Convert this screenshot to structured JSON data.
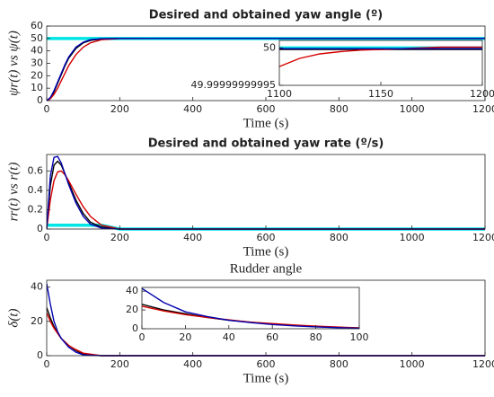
{
  "chart_data": [
    {
      "type": "line",
      "title": "Desired and obtained yaw angle (º)",
      "xlabel": "Time (s)",
      "ylabel": "ψr(t) vs ψ(t)",
      "xlim": [
        0,
        1200
      ],
      "ylim": [
        0,
        60
      ],
      "xticks": [
        0,
        200,
        400,
        600,
        800,
        1000,
        1200
      ],
      "yticks": [
        0,
        10,
        20,
        30,
        40,
        50,
        60
      ],
      "x": [
        0,
        10,
        20,
        30,
        40,
        50,
        60,
        80,
        100,
        120,
        150,
        200,
        300,
        600,
        900,
        1200
      ],
      "series": [
        {
          "color": "#00e5e5",
          "values": [
            50,
            50,
            50,
            50,
            50,
            50,
            50,
            50,
            50,
            50,
            50,
            50,
            50,
            50,
            50,
            50
          ]
        },
        {
          "color": "#000000",
          "values": [
            0,
            2,
            7,
            14,
            21,
            28,
            34,
            42,
            46.5,
            48.5,
            49.7,
            50,
            50,
            50,
            50,
            50
          ]
        },
        {
          "color": "#d40000",
          "values": [
            0,
            1.5,
            5,
            10,
            16,
            22,
            28,
            37,
            43,
            46.5,
            49,
            49.9,
            50,
            50,
            50,
            50
          ]
        },
        {
          "color": "#0000b0",
          "values": [
            0,
            2.5,
            8,
            15,
            22,
            29,
            35,
            43,
            47,
            49,
            49.8,
            50,
            50,
            50,
            50,
            50
          ]
        }
      ]
    },
    {
      "type": "line",
      "xlim": [
        1100,
        1200
      ],
      "ylim": [
        49.99999999995,
        50.00000000001
      ],
      "xticks": [
        1100,
        1150,
        1200
      ],
      "yticks": [
        49.99999999995,
        50
      ],
      "x": [
        1100,
        1110,
        1120,
        1130,
        1140,
        1150,
        1160,
        1170,
        1180,
        1190,
        1200
      ],
      "series": [
        {
          "color": "#00e5e5",
          "values": [
            50,
            50,
            50,
            50,
            50,
            50,
            50,
            50,
            50,
            50,
            50
          ]
        },
        {
          "color": "#000000",
          "values": [
            49.999999999998,
            49.999999999998,
            49.999999999998,
            49.999999999998,
            49.999999999998,
            49.999999999998,
            49.999999999998,
            49.999999999998,
            49.999999999998,
            49.999999999998,
            49.999999999998
          ]
        },
        {
          "color": "#d40000",
          "values": [
            49.999999999975,
            49.999999999986,
            49.999999999992,
            49.999999999995,
            49.999999999997,
            49.999999999998,
            49.999999999999,
            50,
            50.000000000001,
            50.000000000001,
            50.000000000001
          ]
        },
        {
          "color": "#0000b0",
          "values": [
            49.999999999999,
            49.999999999999,
            49.999999999999,
            49.999999999999,
            49.999999999999,
            49.999999999999,
            49.999999999999,
            49.999999999999,
            49.999999999999,
            49.999999999999,
            49.999999999999
          ]
        }
      ]
    },
    {
      "type": "line",
      "title": "Desired and obtained yaw rate (º/s)",
      "xlabel": "Time (s)",
      "ylabel": "rr(t) vs r(t)",
      "xlim": [
        0,
        1200
      ],
      "ylim": [
        0,
        0.77
      ],
      "xticks": [
        0,
        200,
        400,
        600,
        800,
        1000,
        1200
      ],
      "yticks": [
        0,
        0.2,
        0.4,
        0.6
      ],
      "x": [
        0,
        10,
        20,
        30,
        40,
        50,
        60,
        80,
        100,
        120,
        150,
        200,
        300,
        600,
        900,
        1200
      ],
      "series": [
        {
          "color": "#00e5e5",
          "values": [
            0.04,
            0.04,
            0.04,
            0.04,
            0.04,
            0.04,
            0.04,
            0.04,
            0.04,
            0.04,
            0.04,
            0,
            0,
            0,
            0,
            0
          ]
        },
        {
          "color": "#000000",
          "values": [
            0,
            0.45,
            0.66,
            0.7,
            0.66,
            0.57,
            0.48,
            0.3,
            0.16,
            0.07,
            0.02,
            0,
            0,
            0,
            0,
            0
          ]
        },
        {
          "color": "#d40000",
          "values": [
            0,
            0.3,
            0.5,
            0.59,
            0.6,
            0.56,
            0.5,
            0.36,
            0.23,
            0.13,
            0.04,
            0,
            0,
            0,
            0,
            0
          ]
        },
        {
          "color": "#0000b0",
          "values": [
            0,
            0.55,
            0.74,
            0.75,
            0.68,
            0.57,
            0.46,
            0.27,
            0.13,
            0.05,
            0.01,
            0,
            0,
            0,
            0,
            0
          ]
        }
      ]
    },
    {
      "type": "line",
      "title": "Rudder angle",
      "xlabel": "Time (s)",
      "ylabel": "δ(t)",
      "xlim": [
        0,
        1200
      ],
      "ylim": [
        0,
        44
      ],
      "xticks": [
        0,
        200,
        400,
        600,
        800,
        1000,
        1200
      ],
      "yticks": [
        0,
        20,
        40
      ],
      "x": [
        0,
        10,
        20,
        30,
        40,
        60,
        80,
        100,
        150,
        200,
        600,
        1200
      ],
      "series": [
        {
          "color": "#000000",
          "values": [
            28,
            22,
            17,
            13,
            10,
            6,
            3,
            1,
            0,
            0,
            0,
            0
          ]
        },
        {
          "color": "#d40000",
          "values": [
            25,
            20,
            16,
            13,
            10,
            6,
            3.5,
            1.5,
            0,
            0,
            0,
            0
          ]
        },
        {
          "color": "#0000b0",
          "values": [
            42,
            30,
            20,
            14,
            10,
            5,
            2,
            0.5,
            0,
            0,
            0,
            0
          ]
        }
      ]
    },
    {
      "type": "line",
      "xlim": [
        0,
        100
      ],
      "ylim": [
        0,
        44
      ],
      "xticks": [
        0,
        20,
        40,
        60,
        80,
        100
      ],
      "yticks": [
        0,
        20,
        40
      ],
      "x": [
        0,
        10,
        20,
        30,
        40,
        50,
        60,
        70,
        80,
        90,
        100
      ],
      "series": [
        {
          "color": "#000000",
          "values": [
            26,
            20,
            16,
            12,
            9,
            7,
            5,
            3.5,
            2.5,
            1.5,
            0.8
          ]
        },
        {
          "color": "#d40000",
          "values": [
            24,
            19,
            15,
            12,
            9.5,
            7,
            5.5,
            4,
            2.8,
            1.8,
            1
          ]
        },
        {
          "color": "#0000b0",
          "values": [
            43,
            28,
            18,
            13,
            9,
            6.5,
            4.5,
            3,
            2,
            1.2,
            0.5
          ]
        }
      ]
    }
  ]
}
